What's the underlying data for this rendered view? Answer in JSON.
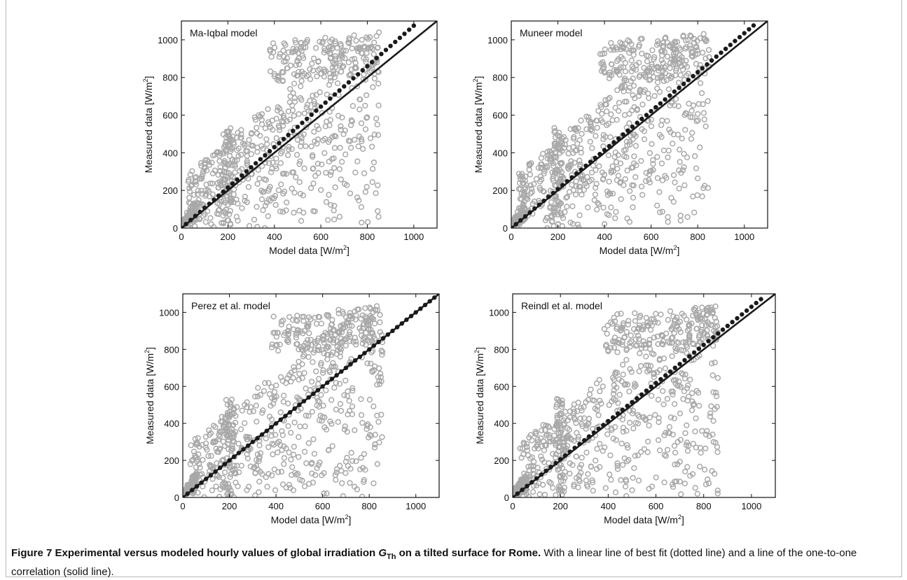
{
  "chart_data": [
    {
      "type": "scatter",
      "title": "Ma-Iqbal model",
      "xlabel": "Model data [W/m²]",
      "ylabel": "Measured data [W/m²]",
      "xlim": [
        0,
        1100
      ],
      "ylim": [
        0,
        1100
      ],
      "xticks": [
        0,
        200,
        400,
        600,
        800,
        1000
      ],
      "yticks": [
        0,
        200,
        400,
        600,
        800,
        1000
      ],
      "best_fit": {
        "slope": 1.075,
        "intercept": 0,
        "x_end": 1000
      },
      "one_to_one": {
        "x_end": 1100
      },
      "max_model_value": 850
    },
    {
      "type": "scatter",
      "title": "Muneer model",
      "xlabel": "Model data [W/m²]",
      "ylabel": "Measured data [W/m²]",
      "xlim": [
        0,
        1100
      ],
      "ylim": [
        0,
        1100
      ],
      "xticks": [
        0,
        200,
        400,
        600,
        800,
        1000
      ],
      "yticks": [
        0,
        200,
        400,
        600,
        800,
        1000
      ],
      "best_fit": {
        "slope": 1.035,
        "intercept": 0,
        "x_end": 1045
      },
      "one_to_one": {
        "x_end": 1100
      },
      "max_model_value": 850
    },
    {
      "type": "scatter",
      "title": "Perez et al. model",
      "xlabel": "Model data [W/m²]",
      "ylabel": "Measured data [W/m²]",
      "xlim": [
        0,
        1100
      ],
      "ylim": [
        0,
        1100
      ],
      "xticks": [
        0,
        200,
        400,
        600,
        800,
        1000
      ],
      "yticks": [
        0,
        200,
        400,
        600,
        800,
        1000
      ],
      "best_fit": {
        "slope": 1.0,
        "intercept": 0,
        "x_end": 1090
      },
      "one_to_one": {
        "x_end": 1100
      },
      "max_model_value": 860
    },
    {
      "type": "scatter",
      "title": "Reindl et al. model",
      "xlabel": "Model data [W/m²]",
      "ylabel": "Measured data [W/m²]",
      "xlim": [
        0,
        1100
      ],
      "ylim": [
        0,
        1100
      ],
      "xticks": [
        0,
        200,
        400,
        600,
        800,
        1000
      ],
      "yticks": [
        0,
        200,
        400,
        600,
        800,
        1000
      ],
      "best_fit": {
        "slope": 1.03,
        "intercept": 0,
        "x_end": 1050
      },
      "one_to_one": {
        "x_end": 1100
      },
      "max_model_value": 860
    }
  ],
  "colors": {
    "scatter": "#a8a8a8",
    "best_fit": "#1a1a1a",
    "one_to_one": "#1a1a1a"
  },
  "caption": {
    "figure_label": "Figure 7",
    "title_before": "Experimental versus modeled hourly values of global irradiation ",
    "symbol": "G",
    "subscript": "Th",
    "title_after": " on a tilted surface for Rome.",
    "body": " With a linear line of best fit (dotted line) and a line of the one-to-one correlation (solid line)."
  }
}
